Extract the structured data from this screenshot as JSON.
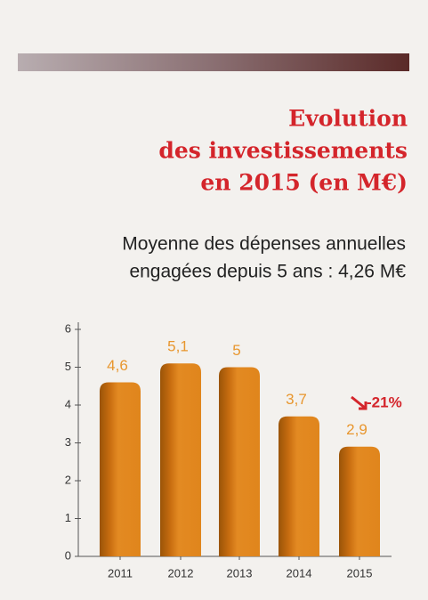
{
  "chart_data": {
    "type": "bar",
    "title": [
      "Evolution",
      "des investissements",
      "en 2015 (en M€)"
    ],
    "subtitle": [
      "Moyenne des dépenses annuelles",
      "engagées depuis 5 ans : 4,26 M€"
    ],
    "categories": [
      "2011",
      "2012",
      "2013",
      "2014",
      "2015"
    ],
    "values": [
      4.6,
      5.1,
      5,
      3.7,
      2.9
    ],
    "value_labels": [
      "4,6",
      "5,1",
      "5",
      "3,7",
      "2,9"
    ],
    "color": "#e0851c",
    "ylim": [
      0,
      6
    ],
    "yticks": [
      0,
      1,
      2,
      3,
      4,
      5,
      6
    ],
    "annotation": "-21%"
  }
}
